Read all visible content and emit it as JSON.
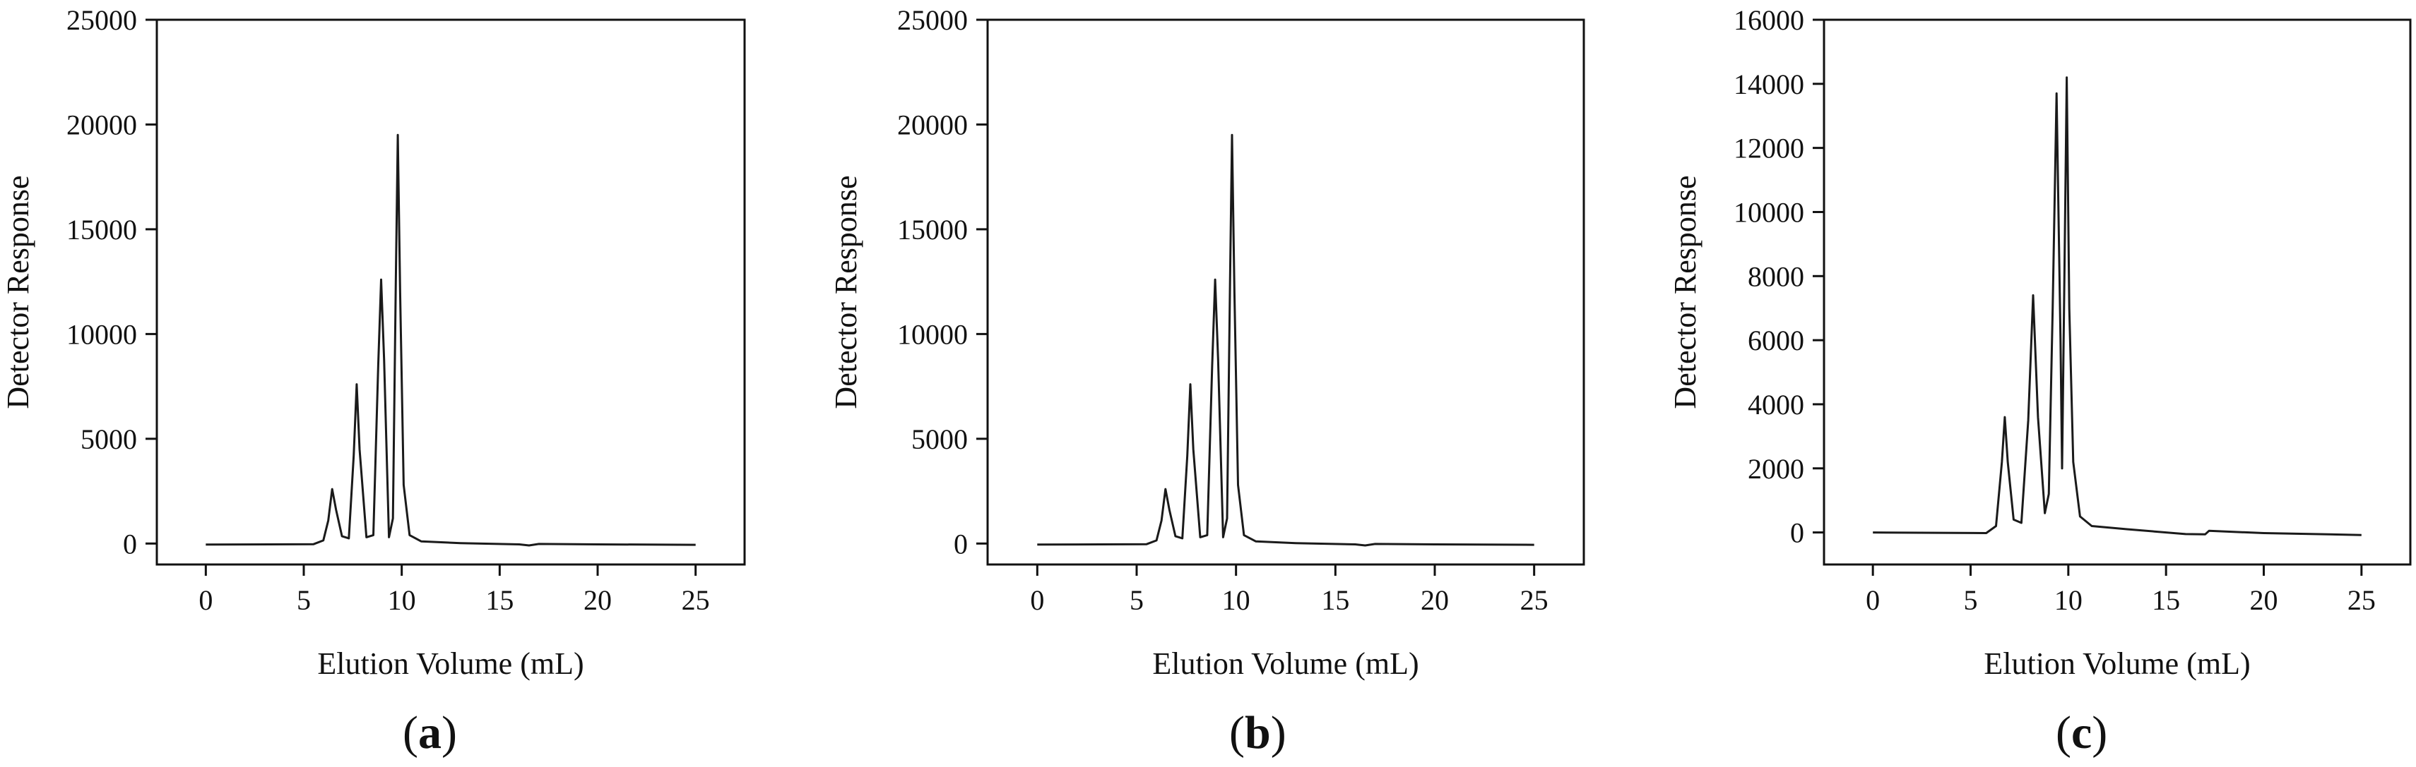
{
  "chart_data": [
    {
      "panel_label": "a",
      "type": "line",
      "title": "",
      "xlabel": "Elution Volume (mL)",
      "ylabel": "Detector Response",
      "xlim": [
        -2.5,
        27.5
      ],
      "ylim": [
        -1000,
        25000
      ],
      "xticks": [
        0,
        5,
        10,
        15,
        20,
        25
      ],
      "yticks": [
        0,
        5000,
        10000,
        15000,
        20000,
        25000
      ],
      "series": [
        {
          "color": "#1a1a1a",
          "points": [
            [
              0,
              -50
            ],
            [
              5.5,
              -30
            ],
            [
              6.0,
              150
            ],
            [
              6.25,
              1100
            ],
            [
              6.45,
              2600
            ],
            [
              6.65,
              1600
            ],
            [
              6.95,
              350
            ],
            [
              7.3,
              250
            ],
            [
              7.55,
              4200
            ],
            [
              7.7,
              7600
            ],
            [
              7.85,
              4500
            ],
            [
              8.2,
              300
            ],
            [
              8.55,
              400
            ],
            [
              8.8,
              8500
            ],
            [
              8.95,
              12600
            ],
            [
              9.1,
              8800
            ],
            [
              9.35,
              300
            ],
            [
              9.55,
              1200
            ],
            [
              9.7,
              12500
            ],
            [
              9.8,
              19500
            ],
            [
              9.92,
              12000
            ],
            [
              10.1,
              2800
            ],
            [
              10.4,
              400
            ],
            [
              11.0,
              100
            ],
            [
              13.0,
              20
            ],
            [
              16.0,
              -40
            ],
            [
              16.5,
              -90
            ],
            [
              17.0,
              -20
            ],
            [
              20.0,
              -40
            ],
            [
              25.0,
              -60
            ]
          ]
        }
      ]
    },
    {
      "panel_label": "b",
      "type": "line",
      "title": "",
      "xlabel": "Elution Volume (mL)",
      "ylabel": "Detector Response",
      "xlim": [
        -2.5,
        27.5
      ],
      "ylim": [
        -1000,
        25000
      ],
      "xticks": [
        0,
        5,
        10,
        15,
        20,
        25
      ],
      "yticks": [
        0,
        5000,
        10000,
        15000,
        20000,
        25000
      ],
      "series": [
        {
          "color": "#1a1a1a",
          "points": [
            [
              0,
              -50
            ],
            [
              5.5,
              -30
            ],
            [
              6.0,
              150
            ],
            [
              6.25,
              1100
            ],
            [
              6.45,
              2600
            ],
            [
              6.65,
              1600
            ],
            [
              6.95,
              350
            ],
            [
              7.3,
              250
            ],
            [
              7.55,
              4200
            ],
            [
              7.7,
              7600
            ],
            [
              7.85,
              4500
            ],
            [
              8.2,
              300
            ],
            [
              8.55,
              400
            ],
            [
              8.8,
              8500
            ],
            [
              8.95,
              12600
            ],
            [
              9.1,
              8800
            ],
            [
              9.35,
              300
            ],
            [
              9.55,
              1200
            ],
            [
              9.7,
              12500
            ],
            [
              9.8,
              19500
            ],
            [
              9.92,
              12000
            ],
            [
              10.1,
              2800
            ],
            [
              10.4,
              400
            ],
            [
              11.0,
              100
            ],
            [
              13.0,
              20
            ],
            [
              16.0,
              -40
            ],
            [
              16.5,
              -90
            ],
            [
              17.0,
              -20
            ],
            [
              20.0,
              -40
            ],
            [
              25.0,
              -60
            ]
          ]
        }
      ]
    },
    {
      "panel_label": "c",
      "type": "line",
      "title": "",
      "xlabel": "Elution Volume (mL)",
      "ylabel": "Detector Response",
      "xlim": [
        -2.5,
        27.5
      ],
      "ylim": [
        -1000,
        16000
      ],
      "xticks": [
        0,
        5,
        10,
        15,
        20,
        25
      ],
      "yticks": [
        0,
        2000,
        4000,
        6000,
        8000,
        10000,
        12000,
        14000,
        16000
      ],
      "series": [
        {
          "color": "#1a1a1a",
          "points": [
            [
              0,
              0
            ],
            [
              5.8,
              -20
            ],
            [
              6.3,
              200
            ],
            [
              6.6,
              2200
            ],
            [
              6.75,
              3600
            ],
            [
              6.9,
              2200
            ],
            [
              7.2,
              400
            ],
            [
              7.6,
              300
            ],
            [
              7.95,
              3500
            ],
            [
              8.2,
              7400
            ],
            [
              8.45,
              3600
            ],
            [
              8.8,
              600
            ],
            [
              9.0,
              1200
            ],
            [
              9.2,
              7000
            ],
            [
              9.4,
              13700
            ],
            [
              9.6,
              6000
            ],
            [
              9.68,
              2000
            ],
            [
              9.8,
              8000
            ],
            [
              9.92,
              14200
            ],
            [
              10.05,
              7000
            ],
            [
              10.25,
              2200
            ],
            [
              10.6,
              500
            ],
            [
              11.2,
              200
            ],
            [
              13.0,
              100
            ],
            [
              16.0,
              -50
            ],
            [
              17.0,
              -60
            ],
            [
              17.2,
              50
            ],
            [
              20.0,
              -20
            ],
            [
              25.0,
              -80
            ]
          ]
        }
      ]
    }
  ]
}
